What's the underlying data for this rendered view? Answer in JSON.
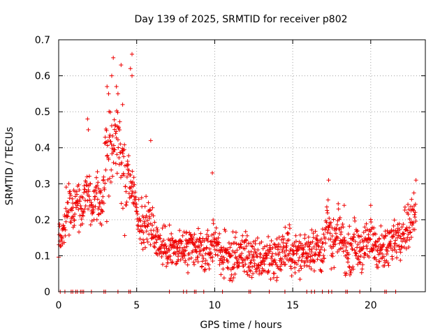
{
  "chart_data": {
    "type": "scatter",
    "title": "Day 139 of 2025, SRMTID for receiver p802",
    "xlabel": "GPS time / hours",
    "ylabel": "SRMTID / TECUs",
    "xlim": [
      0,
      23.5
    ],
    "ylim": [
      0,
      0.7
    ],
    "xticks": [
      0,
      5,
      10,
      15,
      20
    ],
    "xtick_labels": [
      "0",
      "5",
      "10",
      "15",
      "20"
    ],
    "yticks": [
      0,
      0.1,
      0.2,
      0.3,
      0.4,
      0.5,
      0.6,
      0.7
    ],
    "ytick_labels": [
      "0",
      "0.1",
      "0.2",
      "0.3",
      "0.4",
      "0.5",
      "0.6",
      "0.7"
    ],
    "grid": true,
    "marker": "plus",
    "color": "#ee0000",
    "series": [
      {
        "name": "SRMTID",
        "profile": [
          [
            0.0,
            0.14
          ],
          [
            0.3,
            0.17
          ],
          [
            0.6,
            0.23
          ],
          [
            0.9,
            0.21
          ],
          [
            1.2,
            0.25
          ],
          [
            1.5,
            0.22
          ],
          [
            1.8,
            0.3
          ],
          [
            2.1,
            0.22
          ],
          [
            2.4,
            0.27
          ],
          [
            2.7,
            0.24
          ],
          [
            3.0,
            0.33
          ],
          [
            3.3,
            0.42
          ],
          [
            3.6,
            0.44
          ],
          [
            3.9,
            0.38
          ],
          [
            4.2,
            0.33
          ],
          [
            4.5,
            0.3
          ],
          [
            4.8,
            0.28
          ],
          [
            5.1,
            0.2
          ],
          [
            5.4,
            0.18
          ],
          [
            5.8,
            0.21
          ],
          [
            6.2,
            0.15
          ],
          [
            6.6,
            0.12
          ],
          [
            7.0,
            0.13
          ],
          [
            7.5,
            0.11
          ],
          [
            8.0,
            0.12
          ],
          [
            8.5,
            0.11
          ],
          [
            9.0,
            0.12
          ],
          [
            9.5,
            0.1
          ],
          [
            10.0,
            0.15
          ],
          [
            10.5,
            0.1
          ],
          [
            11.0,
            0.09
          ],
          [
            11.5,
            0.1
          ],
          [
            12.0,
            0.11
          ],
          [
            12.5,
            0.08
          ],
          [
            13.0,
            0.09
          ],
          [
            13.5,
            0.1
          ],
          [
            14.0,
            0.09
          ],
          [
            14.5,
            0.12
          ],
          [
            15.0,
            0.11
          ],
          [
            15.5,
            0.1
          ],
          [
            16.0,
            0.12
          ],
          [
            16.5,
            0.13
          ],
          [
            16.8,
            0.09
          ],
          [
            17.2,
            0.2
          ],
          [
            17.5,
            0.12
          ],
          [
            18.0,
            0.17
          ],
          [
            18.5,
            0.1
          ],
          [
            19.0,
            0.14
          ],
          [
            19.5,
            0.11
          ],
          [
            20.0,
            0.15
          ],
          [
            20.5,
            0.12
          ],
          [
            21.0,
            0.11
          ],
          [
            21.5,
            0.15
          ],
          [
            22.0,
            0.17
          ],
          [
            22.5,
            0.19
          ],
          [
            22.9,
            0.22
          ]
        ],
        "peaks": [
          [
            3.1,
            0.57
          ],
          [
            3.2,
            0.55
          ],
          [
            3.4,
            0.6
          ],
          [
            3.5,
            0.65
          ],
          [
            3.7,
            0.57
          ],
          [
            3.8,
            0.55
          ],
          [
            4.0,
            0.63
          ],
          [
            4.1,
            0.52
          ],
          [
            4.7,
            0.66
          ],
          [
            4.6,
            0.62
          ],
          [
            4.7,
            0.6
          ],
          [
            1.85,
            0.48
          ],
          [
            1.9,
            0.45
          ],
          [
            5.9,
            0.42
          ],
          [
            9.85,
            0.33
          ],
          [
            17.3,
            0.31
          ],
          [
            22.9,
            0.31
          ],
          [
            20.0,
            0.24
          ],
          [
            18.3,
            0.24
          ]
        ],
        "zero_points_x": [
          0.1,
          0.4,
          0.8,
          0.9,
          1.1,
          1.2,
          1.4,
          1.5,
          1.6,
          2.1,
          2.9,
          3.0,
          3.8,
          4.5,
          4.6,
          7.1,
          8.0,
          8.2,
          8.7,
          8.8,
          9.3,
          10.5,
          12.2,
          12.3,
          13.5,
          14.5,
          15.9,
          16.2,
          16.4,
          16.9,
          17.3,
          17.5,
          18.4,
          18.5,
          19.3,
          20.9,
          21.0,
          21.6
        ],
        "points_per_hour": 60,
        "spread": 0.06,
        "floor": 0.03
      }
    ]
  }
}
